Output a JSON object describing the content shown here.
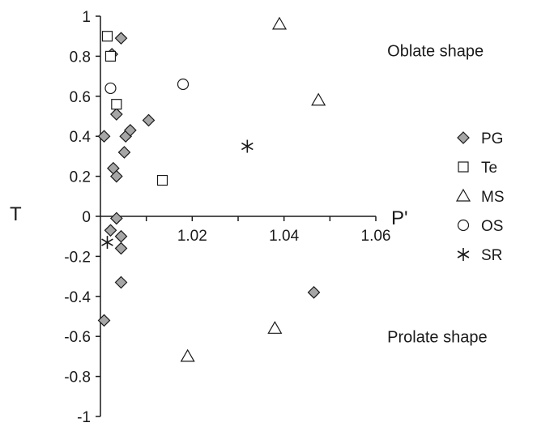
{
  "chart_data": {
    "type": "scatter",
    "xlabel": "P'",
    "ylabel": "T",
    "xlim": [
      1.0,
      1.06
    ],
    "ylim": [
      -1,
      1
    ],
    "x_ticks": [
      "1.02",
      "1.04",
      "1.06"
    ],
    "y_ticks": [
      "1",
      "0.8",
      "0.6",
      "0.4",
      "0.2",
      "0",
      "-0.2",
      "-0.4",
      "-0.6",
      "-0.8",
      "-1"
    ],
    "grid": false,
    "legend_position": "right",
    "annotations": [
      {
        "text": "Oblate shape",
        "x": 1.0625,
        "y": 0.8
      },
      {
        "text": "Prolate shape",
        "x": 1.0625,
        "y": -0.63
      }
    ],
    "series": [
      {
        "name": "PG",
        "marker": "diamond",
        "color": "#a6a6a6",
        "points": [
          [
            1.0008,
            0.4
          ],
          [
            1.0025,
            0.81
          ],
          [
            1.0045,
            0.89
          ],
          [
            1.0035,
            0.51
          ],
          [
            1.0055,
            0.4
          ],
          [
            1.0065,
            0.43
          ],
          [
            1.0052,
            0.32
          ],
          [
            1.0028,
            0.24
          ],
          [
            1.0035,
            0.2
          ],
          [
            1.0105,
            0.48
          ],
          [
            1.0022,
            -0.07
          ],
          [
            1.0035,
            -0.01
          ],
          [
            1.0045,
            -0.1
          ],
          [
            1.0045,
            -0.16
          ],
          [
            1.0045,
            -0.33
          ],
          [
            1.0008,
            -0.52
          ],
          [
            1.0465,
            -0.38
          ]
        ]
      },
      {
        "name": "Te",
        "marker": "square",
        "color": "#ffffff",
        "points": [
          [
            1.0015,
            0.9
          ],
          [
            1.0022,
            0.8
          ],
          [
            1.0035,
            0.56
          ],
          [
            1.0135,
            0.18
          ]
        ]
      },
      {
        "name": "MS",
        "marker": "triangle",
        "color": "#ffffff",
        "points": [
          [
            1.039,
            0.96
          ],
          [
            1.0475,
            0.58
          ],
          [
            1.038,
            -0.56
          ],
          [
            1.019,
            -0.7
          ]
        ]
      },
      {
        "name": "OS",
        "marker": "circle",
        "color": "#ffffff",
        "points": [
          [
            1.0022,
            0.64
          ],
          [
            1.018,
            0.66
          ]
        ]
      },
      {
        "name": "SR",
        "marker": "asterisk",
        "color": "#1a1a1a",
        "points": [
          [
            1.0015,
            -0.13
          ],
          [
            1.032,
            0.35
          ]
        ]
      }
    ]
  }
}
